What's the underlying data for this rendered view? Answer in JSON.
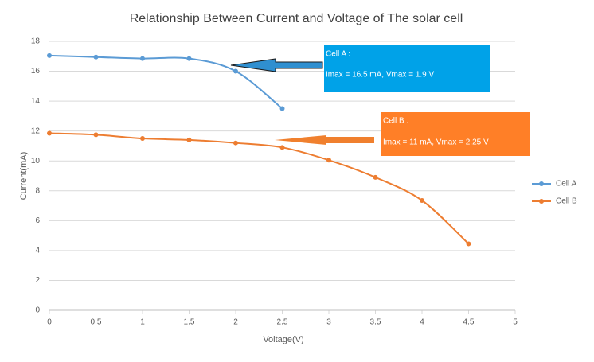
{
  "chart_data": {
    "type": "line",
    "title": "Relationship Between Current and Voltage of The solar cell",
    "x_label": "Voltage(V)",
    "y_label": "Current(mA)",
    "x": [
      0,
      0.5,
      1,
      1.5,
      2,
      2.5,
      3,
      3.5,
      4,
      4.5
    ],
    "series": [
      {
        "name": "Cell A",
        "color": "#5b9bd5",
        "values": [
          17.05,
          16.95,
          16.85,
          16.85,
          16,
          13.5,
          null,
          null,
          null,
          null
        ]
      },
      {
        "name": "Cell B",
        "color": "#ed7d31",
        "values": [
          11.85,
          11.75,
          11.5,
          11.4,
          11.2,
          10.9,
          10.05,
          8.9,
          7.35,
          4.45
        ]
      }
    ],
    "xlim": [
      0,
      5
    ],
    "xticks": [
      0,
      0.5,
      1,
      1.5,
      2,
      2.5,
      3,
      3.5,
      4,
      4.5,
      5
    ],
    "ylim": [
      0,
      18
    ],
    "yticks": [
      0,
      2,
      4,
      6,
      8,
      10,
      12,
      14,
      16,
      18
    ],
    "grid": true,
    "legend": "right",
    "annotations": [
      {
        "title": "Cell A :",
        "text": "Imax = 16.5 mA, Vmax = 1.9 V",
        "color": "#00a2e8"
      },
      {
        "title": "Cell B :",
        "text": "Imax = 11 mA, Vmax = 2.25 V",
        "color": "#ff7f27"
      }
    ]
  }
}
